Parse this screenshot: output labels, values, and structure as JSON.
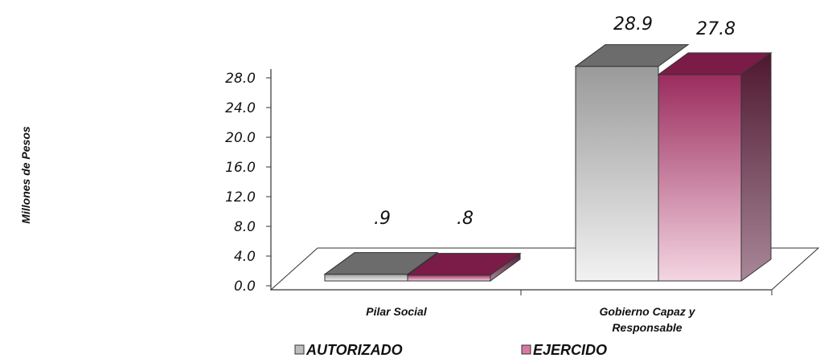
{
  "chart_data": {
    "type": "bar",
    "ylabel": "Millones de Pesos",
    "categories": [
      "Pilar Social",
      "Gobierno Capaz y Responsable"
    ],
    "category_lines": [
      [
        "Pilar Social"
      ],
      [
        "Gobierno Capaz y",
        "Responsable"
      ]
    ],
    "series": [
      {
        "name": "AUTORIZADO",
        "values": [
          0.9,
          28.9
        ],
        "labels": [
          ".9",
          "28.9"
        ],
        "color": "#9a9a9a"
      },
      {
        "name": "EJERCIDO",
        "values": [
          0.8,
          27.8
        ],
        "labels": [
          ".8",
          "27.8"
        ],
        "color": "#9b2c5e"
      }
    ],
    "yticks": [
      "0.0",
      "4.0",
      "8.0",
      "12.0",
      "16.0",
      "20.0",
      "24.0",
      "28.0"
    ],
    "ylim": [
      0,
      28
    ],
    "grid": false,
    "legend_position": "bottom",
    "style": "3d-bars"
  }
}
